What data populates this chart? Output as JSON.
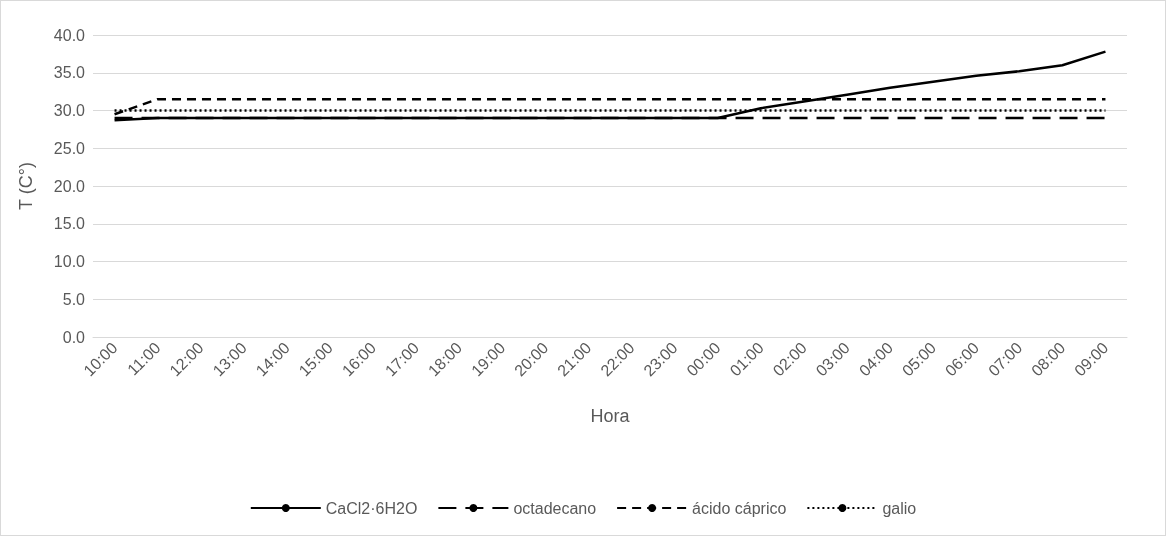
{
  "chart_data": {
    "type": "line",
    "xlabel": "Hora",
    "ylabel": "T (C°)",
    "categories": [
      "10:00",
      "11:00",
      "12:00",
      "13:00",
      "14:00",
      "15:00",
      "16:00",
      "17:00",
      "18:00",
      "19:00",
      "20:00",
      "21:00",
      "22:00",
      "23:00",
      "00:00",
      "01:00",
      "02:00",
      "03:00",
      "04:00",
      "05:00",
      "06:00",
      "07:00",
      "08:00",
      "09:00"
    ],
    "series": [
      {
        "name": "CaCl2·6H2O",
        "color": "#000000",
        "line_style": "solid",
        "values": [
          28.7,
          29.0,
          29.0,
          29.0,
          29.0,
          29.0,
          29.0,
          29.0,
          29.0,
          29.0,
          29.0,
          29.0,
          29.0,
          29.0,
          29.0,
          30.3,
          31.2,
          32.1,
          33.0,
          33.8,
          34.6,
          35.2,
          36.0,
          37.8
        ]
      },
      {
        "name": "octadecano",
        "color": "#000000",
        "line_style": "dashed",
        "values": [
          29.0,
          29.0,
          29.0,
          29.0,
          29.0,
          29.0,
          29.0,
          29.0,
          29.0,
          29.0,
          29.0,
          29.0,
          29.0,
          29.0,
          29.0,
          29.0,
          29.0,
          29.0,
          29.0,
          29.0,
          29.0,
          29.0,
          29.0,
          29.0
        ]
      },
      {
        "name": "ácido cáprico",
        "color": "#000000",
        "line_style": "dashed",
        "values": [
          29.5,
          31.5,
          31.5,
          31.5,
          31.5,
          31.5,
          31.5,
          31.5,
          31.5,
          31.5,
          31.5,
          31.5,
          31.5,
          31.5,
          31.5,
          31.5,
          31.5,
          31.5,
          31.5,
          31.5,
          31.5,
          31.5,
          31.5,
          31.5
        ]
      },
      {
        "name": "galio",
        "color": "#000000",
        "line_style": "dotted",
        "values": [
          30.0,
          30.0,
          30.0,
          30.0,
          30.0,
          30.0,
          30.0,
          30.0,
          30.0,
          30.0,
          30.0,
          30.0,
          30.0,
          30.0,
          30.0,
          30.0,
          30.0,
          30.0,
          30.0,
          30.0,
          30.0,
          30.0,
          30.0,
          30.0
        ]
      }
    ],
    "ylim": [
      0,
      40
    ],
    "yticks": [
      {
        "value": 0,
        "label": "0.0"
      },
      {
        "value": 5,
        "label": "5.0"
      },
      {
        "value": 10,
        "label": "10.0"
      },
      {
        "value": 15,
        "label": "15.0"
      },
      {
        "value": 20,
        "label": "20.0"
      },
      {
        "value": 25,
        "label": "25.0"
      },
      {
        "value": 30,
        "label": "30.0"
      },
      {
        "value": 35,
        "label": "35.0"
      },
      {
        "value": 40,
        "label": "40.0"
      }
    ],
    "grid": "y",
    "legend": "bottom",
    "marker": "none"
  }
}
